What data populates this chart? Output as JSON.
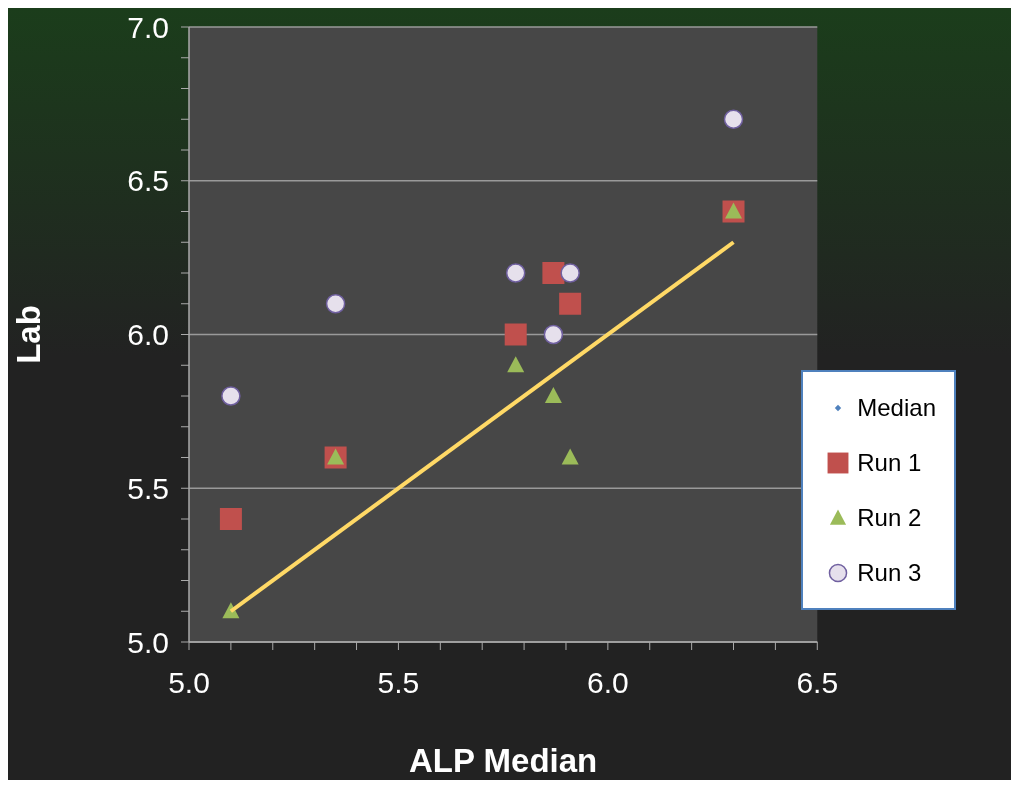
{
  "chart_data": {
    "type": "scatter",
    "xlabel": "ALP Median",
    "ylabel": "Lab",
    "xlim": [
      5.0,
      6.5
    ],
    "ylim": [
      5.0,
      7.0
    ],
    "xticks": [
      {
        "value": 5.0,
        "label": "5.0"
      },
      {
        "value": 5.1,
        "label": null
      },
      {
        "value": 5.2,
        "label": null
      },
      {
        "value": 5.3,
        "label": null
      },
      {
        "value": 5.4,
        "label": null
      },
      5.5,
      {
        "value": 5.6,
        "label": null
      },
      {
        "value": 5.7,
        "label": null
      },
      {
        "value": 5.8,
        "label": null
      },
      {
        "value": 5.9,
        "label": null
      },
      {
        "value": 6.0,
        "label": "6.0"
      },
      {
        "value": 6.1,
        "label": null
      },
      {
        "value": 6.2,
        "label": null
      },
      {
        "value": 6.3,
        "label": null
      },
      {
        "value": 6.4,
        "label": null
      },
      6.5
    ],
    "yticks": [
      {
        "value": 5.0,
        "label": "5.0"
      },
      {
        "value": 5.1,
        "label": null
      },
      {
        "value": 5.2,
        "label": null
      },
      {
        "value": 5.3,
        "label": null
      },
      {
        "value": 5.4,
        "label": null
      },
      5.5,
      {
        "value": 5.6,
        "label": null
      },
      {
        "value": 5.7,
        "label": null
      },
      {
        "value": 5.8,
        "label": null
      },
      {
        "value": 5.9,
        "label": null
      },
      {
        "value": 6.0,
        "label": "6.0"
      },
      {
        "value": 6.1,
        "label": null
      },
      {
        "value": 6.2,
        "label": null
      },
      {
        "value": 6.3,
        "label": null
      },
      {
        "value": 6.4,
        "label": null
      },
      6.5,
      {
        "value": 6.6,
        "label": null
      },
      {
        "value": 6.7,
        "label": null
      },
      {
        "value": 6.8,
        "label": null
      },
      {
        "value": 6.9,
        "label": null
      },
      {
        "value": 7.0,
        "label": "7.0"
      }
    ],
    "grid": "y",
    "legend": "right",
    "x": [
      5.1,
      5.35,
      5.78,
      5.87,
      5.91,
      6.3
    ],
    "series": [
      {
        "name": "Median",
        "color": "#4f81bd",
        "marker": "diamond",
        "values": [
          null,
          null,
          null,
          null,
          null,
          null
        ]
      },
      {
        "name": "Run 1",
        "color": "#c0504d",
        "marker": "square",
        "values": [
          5.4,
          5.6,
          6.0,
          6.2,
          6.1,
          6.4
        ]
      },
      {
        "name": "Run 2",
        "color": "#9bbb59",
        "marker": "triangle",
        "values": [
          5.1,
          5.6,
          5.9,
          5.8,
          5.6,
          6.4
        ]
      },
      {
        "name": "Run 3",
        "color": "#e6e0ec",
        "marker": "circle",
        "values": [
          5.8,
          6.1,
          6.2,
          6.0,
          6.2,
          6.7
        ]
      },
      {
        "type": "line",
        "color": "#ffd966",
        "marker": "none",
        "x": [
          5.1,
          6.3
        ],
        "values": [
          5.1,
          6.3
        ]
      }
    ]
  }
}
